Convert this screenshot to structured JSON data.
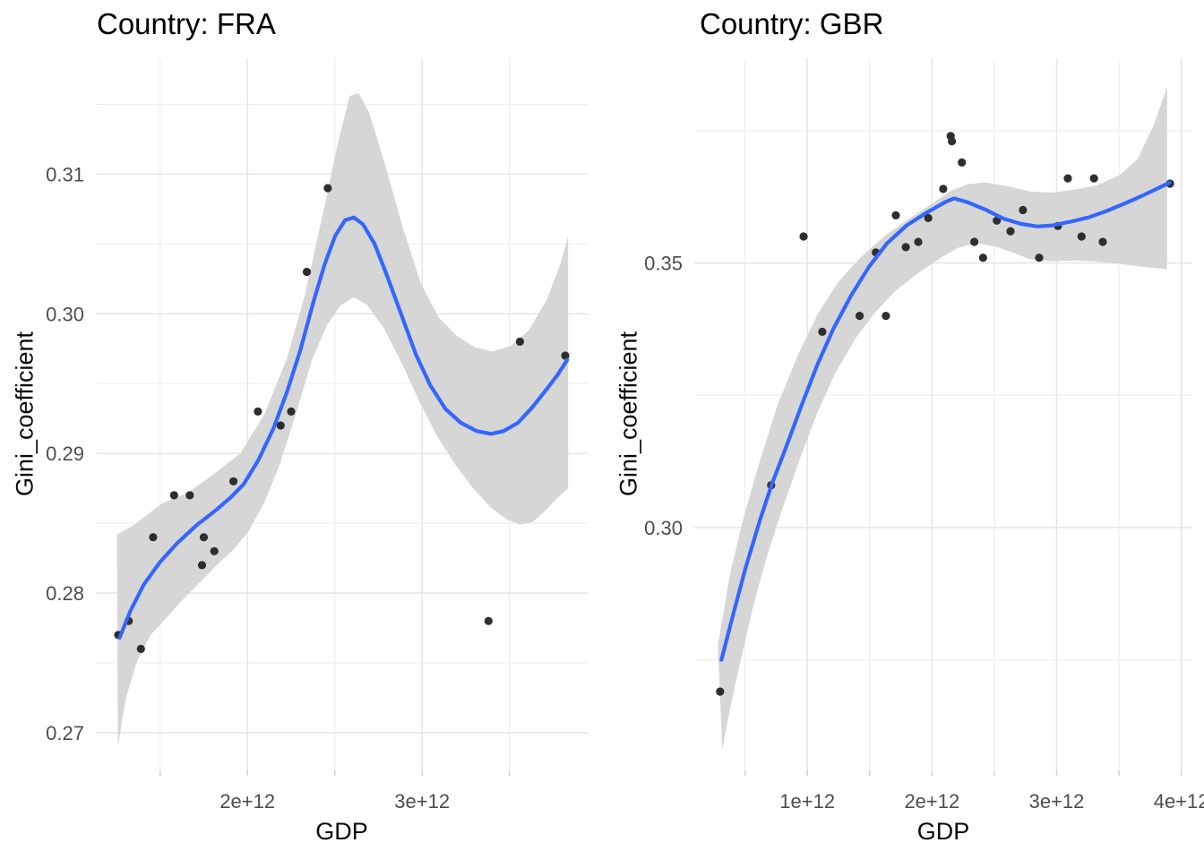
{
  "page": {
    "background": "#FFFFFF",
    "layout_note": "two faceted scatter plots with loess smooth and confidence band"
  },
  "colors": {
    "smooth_line": "#3366FF",
    "ci_band": "#D6D6D6",
    "points": "#2E2E2E",
    "grid_major": "#E6E6E6",
    "grid_minor": "#EDEDED",
    "axis_tick_mark": "#D2D2D2",
    "tick_label_text": "#4D4D4D",
    "title_text": "#000000"
  },
  "chart_data": [
    {
      "type": "scatter",
      "title": "Country: FRA",
      "xlabel": "GDP",
      "ylabel": "Gini_coefficient",
      "x_unit_multiplier": "1e+12",
      "xlim": [
        1.132,
        3.948
      ],
      "ylim": [
        0.2673,
        0.3183
      ],
      "grid": true,
      "legend_position": "none",
      "x_ticks": [
        {
          "v": 2,
          "label": "2e+12"
        },
        {
          "v": 3,
          "label": "3e+12"
        }
      ],
      "x_minor_ticks": [
        1.5,
        2.5,
        3.5
      ],
      "y_ticks": [
        {
          "v": 0.27,
          "label": "0.27"
        },
        {
          "v": 0.28,
          "label": "0.28"
        },
        {
          "v": 0.29,
          "label": "0.29"
        },
        {
          "v": 0.3,
          "label": "0.30"
        },
        {
          "v": 0.31,
          "label": "0.31"
        }
      ],
      "y_minor_ticks": [
        0.275,
        0.285,
        0.295,
        0.305,
        0.315
      ],
      "points": [
        [
          1.26,
          0.277
        ],
        [
          1.32,
          0.278
        ],
        [
          1.39,
          0.276
        ],
        [
          1.46,
          0.284
        ],
        [
          1.58,
          0.287
        ],
        [
          1.67,
          0.287
        ],
        [
          1.74,
          0.282
        ],
        [
          1.75,
          0.284
        ],
        [
          1.81,
          0.283
        ],
        [
          1.92,
          0.288
        ],
        [
          2.06,
          0.293
        ],
        [
          2.19,
          0.292
        ],
        [
          2.25,
          0.293
        ],
        [
          2.34,
          0.303
        ],
        [
          2.46,
          0.309
        ],
        [
          3.38,
          0.278
        ],
        [
          3.56,
          0.298
        ],
        [
          3.82,
          0.297
        ]
      ],
      "smooth_line": [
        [
          1.268,
          0.2768
        ],
        [
          1.329,
          0.2787
        ],
        [
          1.406,
          0.2806
        ],
        [
          1.498,
          0.2822
        ],
        [
          1.6,
          0.2836
        ],
        [
          1.713,
          0.2849
        ],
        [
          1.826,
          0.286
        ],
        [
          1.908,
          0.2869
        ],
        [
          1.979,
          0.2878
        ],
        [
          2.062,
          0.2895
        ],
        [
          2.149,
          0.2918
        ],
        [
          2.226,
          0.2944
        ],
        [
          2.303,
          0.2974
        ],
        [
          2.379,
          0.3009
        ],
        [
          2.441,
          0.3035
        ],
        [
          2.503,
          0.3056
        ],
        [
          2.559,
          0.3067
        ],
        [
          2.61,
          0.3069
        ],
        [
          2.662,
          0.3064
        ],
        [
          2.728,
          0.305
        ],
        [
          2.8,
          0.3027
        ],
        [
          2.882,
          0.2999
        ],
        [
          2.964,
          0.2971
        ],
        [
          3.046,
          0.2949
        ],
        [
          3.133,
          0.2932
        ],
        [
          3.221,
          0.2922
        ],
        [
          3.313,
          0.2916
        ],
        [
          3.395,
          0.2914
        ],
        [
          3.467,
          0.2916
        ],
        [
          3.549,
          0.2922
        ],
        [
          3.631,
          0.2933
        ],
        [
          3.713,
          0.2946
        ],
        [
          3.774,
          0.2956
        ],
        [
          3.831,
          0.2967
        ]
      ],
      "ci_band_upper": [
        [
          1.253,
          0.2842
        ],
        [
          1.354,
          0.2849
        ],
        [
          1.508,
          0.2864
        ],
        [
          1.662,
          0.2872
        ],
        [
          1.815,
          0.2886
        ],
        [
          1.959,
          0.29
        ],
        [
          2.097,
          0.2928
        ],
        [
          2.226,
          0.2968
        ],
        [
          2.328,
          0.3013
        ],
        [
          2.431,
          0.3071
        ],
        [
          2.523,
          0.3125
        ],
        [
          2.585,
          0.3156
        ],
        [
          2.636,
          0.3158
        ],
        [
          2.697,
          0.3144
        ],
        [
          2.79,
          0.3106
        ],
        [
          2.892,
          0.3061
        ],
        [
          2.995,
          0.3021
        ],
        [
          3.097,
          0.2997
        ],
        [
          3.2,
          0.2984
        ],
        [
          3.303,
          0.2976
        ],
        [
          3.405,
          0.2973
        ],
        [
          3.508,
          0.2977
        ],
        [
          3.61,
          0.2988
        ],
        [
          3.713,
          0.301
        ],
        [
          3.79,
          0.3035
        ],
        [
          3.836,
          0.3056
        ]
      ],
      "ci_band_lower": [
        [
          1.258,
          0.269
        ],
        [
          1.303,
          0.2724
        ],
        [
          1.364,
          0.275
        ],
        [
          1.446,
          0.277
        ],
        [
          1.533,
          0.2782
        ],
        [
          1.636,
          0.2796
        ],
        [
          1.738,
          0.2809
        ],
        [
          1.841,
          0.2822
        ],
        [
          1.928,
          0.2832
        ],
        [
          2.01,
          0.2845
        ],
        [
          2.097,
          0.2865
        ],
        [
          2.185,
          0.2892
        ],
        [
          2.277,
          0.2928
        ],
        [
          2.369,
          0.2967
        ],
        [
          2.456,
          0.2992
        ],
        [
          2.533,
          0.3006
        ],
        [
          2.61,
          0.3012
        ],
        [
          2.687,
          0.3006
        ],
        [
          2.779,
          0.299
        ],
        [
          2.882,
          0.2965
        ],
        [
          2.985,
          0.2937
        ],
        [
          3.087,
          0.2912
        ],
        [
          3.19,
          0.2892
        ],
        [
          3.292,
          0.2875
        ],
        [
          3.395,
          0.2861
        ],
        [
          3.482,
          0.2853
        ],
        [
          3.559,
          0.2849
        ],
        [
          3.636,
          0.2851
        ],
        [
          3.713,
          0.286
        ],
        [
          3.774,
          0.2868
        ],
        [
          3.836,
          0.2875
        ]
      ]
    },
    {
      "type": "scatter",
      "title": "Country: GBR",
      "xlabel": "GDP",
      "ylabel": "Gini_coefficient",
      "x_unit_multiplier": "1e+12",
      "xlim": [
        0.093,
        4.089
      ],
      "ylim": [
        0.2541,
        0.3887
      ],
      "grid": true,
      "legend_position": "none",
      "x_ticks": [
        {
          "v": 1,
          "label": "1e+12"
        },
        {
          "v": 2,
          "label": "2e+12"
        },
        {
          "v": 3,
          "label": "3e+12"
        },
        {
          "v": 4,
          "label": "4e+12"
        }
      ],
      "x_minor_ticks": [
        0.5,
        1.5,
        2.5,
        3.5
      ],
      "y_ticks": [
        {
          "v": 0.3,
          "label": "0.30"
        },
        {
          "v": 0.35,
          "label": "0.35"
        }
      ],
      "y_minor_ticks": [
        0.275,
        0.325,
        0.375
      ],
      "points": [
        [
          0.3,
          0.269
        ],
        [
          0.71,
          0.308
        ],
        [
          0.97,
          0.355
        ],
        [
          1.12,
          0.337
        ],
        [
          1.42,
          0.34
        ],
        [
          1.55,
          0.352
        ],
        [
          1.63,
          0.34
        ],
        [
          1.71,
          0.359
        ],
        [
          1.79,
          0.353
        ],
        [
          1.89,
          0.354
        ],
        [
          1.97,
          0.3585
        ],
        [
          2.09,
          0.364
        ],
        [
          2.15,
          0.374
        ],
        [
          2.16,
          0.373
        ],
        [
          2.24,
          0.369
        ],
        [
          2.34,
          0.354
        ],
        [
          2.41,
          0.351
        ],
        [
          2.52,
          0.358
        ],
        [
          2.63,
          0.356
        ],
        [
          2.73,
          0.36
        ],
        [
          2.86,
          0.351
        ],
        [
          3.01,
          0.357
        ],
        [
          3.09,
          0.366
        ],
        [
          3.2,
          0.355
        ],
        [
          3.3,
          0.366
        ],
        [
          3.37,
          0.354
        ],
        [
          3.91,
          0.365
        ]
      ],
      "smooth_line": [
        [
          0.311,
          0.275
        ],
        [
          0.404,
          0.2835
        ],
        [
          0.505,
          0.2924
        ],
        [
          0.62,
          0.3014
        ],
        [
          0.72,
          0.3085
        ],
        [
          0.835,
          0.3155
        ],
        [
          0.957,
          0.3233
        ],
        [
          1.079,
          0.3307
        ],
        [
          1.208,
          0.3375
        ],
        [
          1.352,
          0.3439
        ],
        [
          1.495,
          0.3493
        ],
        [
          1.639,
          0.3537
        ],
        [
          1.797,
          0.3571
        ],
        [
          1.962,
          0.3596
        ],
        [
          2.105,
          0.3615
        ],
        [
          2.177,
          0.3622
        ],
        [
          2.285,
          0.3615
        ],
        [
          2.428,
          0.3601
        ],
        [
          2.572,
          0.3584
        ],
        [
          2.715,
          0.3574
        ],
        [
          2.845,
          0.3569
        ],
        [
          2.967,
          0.3571
        ],
        [
          3.11,
          0.3578
        ],
        [
          3.254,
          0.3586
        ],
        [
          3.398,
          0.3598
        ],
        [
          3.541,
          0.3612
        ],
        [
          3.685,
          0.3627
        ],
        [
          3.792,
          0.3639
        ],
        [
          3.907,
          0.3652
        ]
      ],
      "ci_band_upper": [
        [
          0.282,
          0.2777
        ],
        [
          0.383,
          0.2916
        ],
        [
          0.49,
          0.302
        ],
        [
          0.62,
          0.3127
        ],
        [
          0.763,
          0.3233
        ],
        [
          0.921,
          0.3324
        ],
        [
          1.079,
          0.3402
        ],
        [
          1.244,
          0.3463
        ],
        [
          1.424,
          0.351
        ],
        [
          1.625,
          0.3552
        ],
        [
          1.818,
          0.3584
        ],
        [
          1.998,
          0.3612
        ],
        [
          2.156,
          0.3637
        ],
        [
          2.285,
          0.3649
        ],
        [
          2.428,
          0.3652
        ],
        [
          2.608,
          0.3645
        ],
        [
          2.787,
          0.3635
        ],
        [
          2.967,
          0.3633
        ],
        [
          3.146,
          0.3639
        ],
        [
          3.326,
          0.3647
        ],
        [
          3.505,
          0.3666
        ],
        [
          3.649,
          0.3696
        ],
        [
          3.778,
          0.376
        ],
        [
          3.886,
          0.3833
        ]
      ],
      "ci_band_lower": [
        [
          0.318,
          0.2581
        ],
        [
          0.383,
          0.2662
        ],
        [
          0.455,
          0.2738
        ],
        [
          0.562,
          0.2848
        ],
        [
          0.67,
          0.2941
        ],
        [
          0.792,
          0.303
        ],
        [
          0.935,
          0.3127
        ],
        [
          1.079,
          0.3216
        ],
        [
          1.222,
          0.3291
        ],
        [
          1.388,
          0.3358
        ],
        [
          1.553,
          0.3409
        ],
        [
          1.711,
          0.3448
        ],
        [
          1.89,
          0.3481
        ],
        [
          2.07,
          0.351
        ],
        [
          2.213,
          0.3529
        ],
        [
          2.357,
          0.3537
        ],
        [
          2.5,
          0.3532
        ],
        [
          2.644,
          0.352
        ],
        [
          2.787,
          0.3507
        ],
        [
          2.967,
          0.3503
        ],
        [
          3.146,
          0.3505
        ],
        [
          3.362,
          0.3502
        ],
        [
          3.541,
          0.3497
        ],
        [
          3.721,
          0.3492
        ],
        [
          3.886,
          0.3488
        ]
      ]
    }
  ]
}
